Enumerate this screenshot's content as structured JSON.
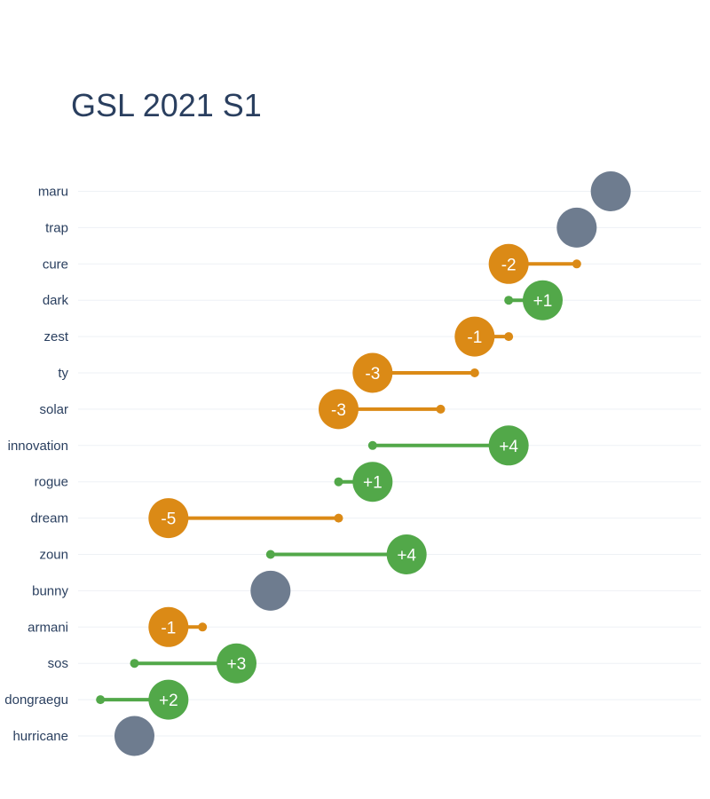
{
  "chart_data": {
    "type": "dot-arrow",
    "title": "GSL 2021 S1",
    "direction": "higher-rank-to-the-right",
    "players": [
      {
        "name": "maru",
        "previous": 1,
        "current": 1,
        "change": ""
      },
      {
        "name": "trap",
        "previous": 2,
        "current": 2,
        "change": ""
      },
      {
        "name": "cure",
        "previous": 2,
        "current": 4,
        "change": "-2"
      },
      {
        "name": "dark",
        "previous": 4,
        "current": 3,
        "change": "+1"
      },
      {
        "name": "zest",
        "previous": 4,
        "current": 5,
        "change": "-1"
      },
      {
        "name": "ty",
        "previous": 5,
        "current": 8,
        "change": "-3"
      },
      {
        "name": "solar",
        "previous": 6,
        "current": 9,
        "change": "-3"
      },
      {
        "name": "innovation",
        "previous": 8,
        "current": 4,
        "change": "+4"
      },
      {
        "name": "rogue",
        "previous": 9,
        "current": 8,
        "change": "+1"
      },
      {
        "name": "dream",
        "previous": 9,
        "current": 14,
        "change": "-5"
      },
      {
        "name": "zoun",
        "previous": 11,
        "current": 7,
        "change": "+4"
      },
      {
        "name": "bunny",
        "previous": 11,
        "current": 11,
        "change": ""
      },
      {
        "name": "armani",
        "previous": 13,
        "current": 14,
        "change": "-1"
      },
      {
        "name": "sos",
        "previous": 15,
        "current": 12,
        "change": "+3"
      },
      {
        "name": "dongraegu",
        "previous": 16,
        "current": 14,
        "change": "+2"
      },
      {
        "name": "hurricane",
        "previous": 15,
        "current": 15,
        "change": ""
      }
    ],
    "x_range": [
      17,
      0
    ],
    "grid": true,
    "colors": {
      "up": "#52a849",
      "down": "#db8a16",
      "same": "#6e7c8f",
      "grid": "#eef1f5",
      "text": "#2a3f5f"
    }
  }
}
